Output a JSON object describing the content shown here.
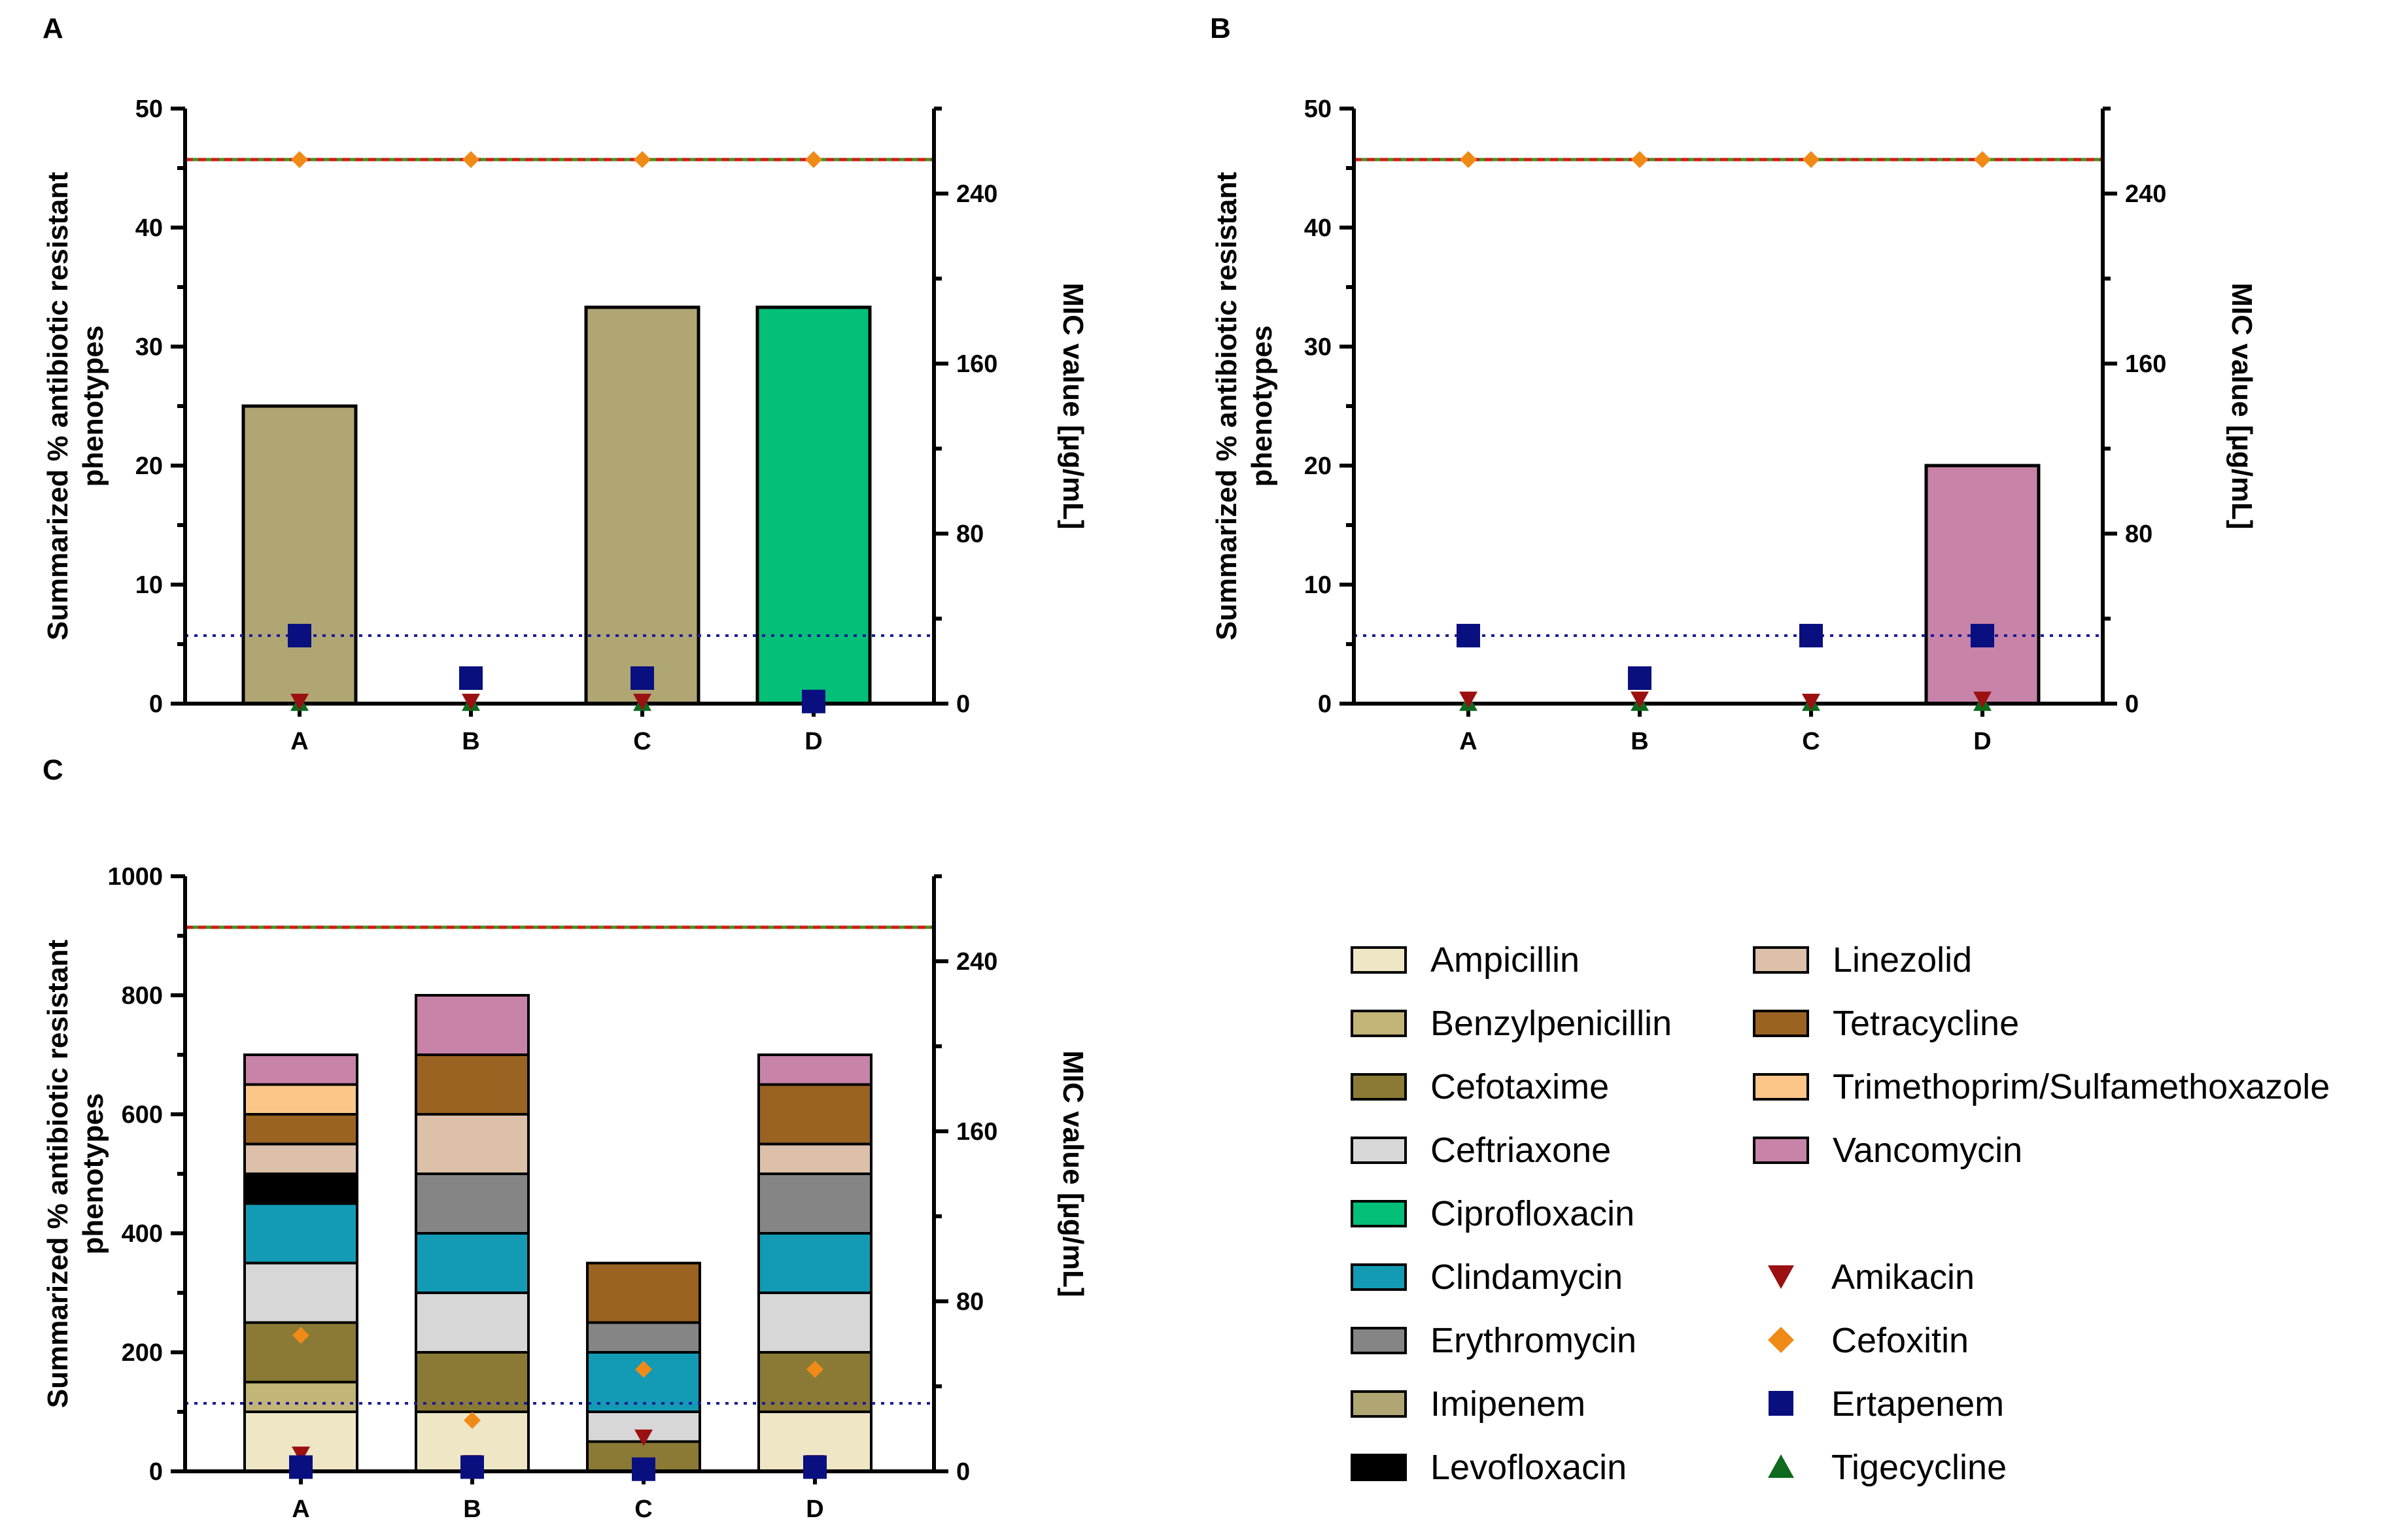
{
  "chart_data": [
    {
      "panel": "A",
      "type": "bar",
      "ylabel": "Summarized % antibiotic resistant phenotypes",
      "y2label": "MIC value [µg/mL]",
      "ylim": [
        0,
        50
      ],
      "y2lim": [
        0,
        280
      ],
      "yticks": [
        0,
        10,
        20,
        30,
        40,
        50
      ],
      "y2ticks": [
        0,
        80,
        160,
        240
      ],
      "categories": [
        "A",
        "B",
        "C",
        "D"
      ],
      "series": [
        {
          "name": "Imipenem",
          "values": [
            25,
            0,
            33.3,
            0
          ]
        },
        {
          "name": "Ciprofloxacin",
          "values": [
            0,
            0,
            0,
            33.3
          ]
        }
      ],
      "markers": [
        {
          "name": "Amikacin",
          "values": [
            1,
            1,
            1,
            1
          ]
        },
        {
          "name": "Cefoxitin",
          "values": [
            256,
            256,
            256,
            256
          ]
        },
        {
          "name": "Ertapenem",
          "values": [
            32,
            12,
            12,
            1
          ]
        },
        {
          "name": "Tigecycline",
          "values": [
            0.25,
            0.25,
            0.25,
            0.25
          ]
        }
      ],
      "reference_lines": [
        {
          "axis": "y2",
          "value": 256,
          "style": "red-green-dashed"
        },
        {
          "axis": "y2",
          "value": 32,
          "style": "blue-dotted"
        }
      ]
    },
    {
      "panel": "B",
      "type": "bar",
      "ylabel": "Summarized % antibiotic resistant phenotypes",
      "y2label": "MIC value [µg/mL]",
      "ylim": [
        0,
        50
      ],
      "y2lim": [
        0,
        280
      ],
      "yticks": [
        0,
        10,
        20,
        30,
        40,
        50
      ],
      "y2ticks": [
        0,
        80,
        160,
        240
      ],
      "categories": [
        "A",
        "B",
        "C",
        "D"
      ],
      "series": [
        {
          "name": "Vancomycin",
          "values": [
            0,
            0,
            0,
            20
          ]
        }
      ],
      "markers": [
        {
          "name": "Amikacin",
          "values": [
            2,
            2,
            1,
            2
          ]
        },
        {
          "name": "Cefoxitin",
          "values": [
            256,
            256,
            256,
            256
          ]
        },
        {
          "name": "Ertapenem",
          "values": [
            32,
            12,
            32,
            32
          ]
        },
        {
          "name": "Tigecycline",
          "values": [
            0.25,
            0.25,
            0.25,
            0.25
          ]
        }
      ],
      "reference_lines": [
        {
          "axis": "y2",
          "value": 256,
          "style": "red-green-dashed"
        },
        {
          "axis": "y2",
          "value": 32,
          "style": "blue-dotted"
        }
      ]
    },
    {
      "panel": "C",
      "type": "bar",
      "stacked": true,
      "ylabel": "Summarized % antibiotic resistant phenotypes",
      "y2label": "MIC value [µg/mL]",
      "ylim": [
        0,
        1000
      ],
      "y2lim": [
        0,
        280
      ],
      "yticks": [
        0,
        200,
        400,
        600,
        800,
        1000
      ],
      "y2ticks": [
        0,
        80,
        160,
        240
      ],
      "categories": [
        "A",
        "B",
        "C",
        "D"
      ],
      "series": [
        {
          "name": "Ampicillin",
          "values": [
            100,
            100,
            0,
            100
          ]
        },
        {
          "name": "Cefotaxime",
          "values": [
            0,
            0,
            50,
            0
          ]
        },
        {
          "name": "Ceftriaxone",
          "values": [
            0,
            0,
            50,
            0
          ]
        },
        {
          "name": "Benzylpenicillin",
          "values": [
            50,
            0,
            0,
            0
          ]
        },
        {
          "name": "Cefotaxime",
          "values": [
            100,
            100,
            0,
            100
          ]
        },
        {
          "name": "Ceftriaxone",
          "values": [
            100,
            100,
            0,
            100
          ]
        },
        {
          "name": "Clindamycin",
          "values": [
            100,
            100,
            100,
            100
          ]
        },
        {
          "name": "Levofloxacin",
          "values": [
            50,
            0,
            0,
            0
          ]
        },
        {
          "name": "Erythromycin",
          "values": [
            0,
            100,
            50,
            100
          ]
        },
        {
          "name": "Linezolid",
          "values": [
            50,
            100,
            0,
            50
          ]
        },
        {
          "name": "Tetracycline",
          "values": [
            50,
            100,
            100,
            100
          ]
        },
        {
          "name": "Trimethoprim/Sulfamethoxazole",
          "values": [
            50,
            0,
            0,
            0
          ]
        },
        {
          "name": "Vancomycin",
          "values": [
            50,
            100,
            0,
            50
          ]
        }
      ],
      "markers": [
        {
          "name": "Amikacin",
          "values": [
            8,
            4,
            16,
            4
          ]
        },
        {
          "name": "Cefoxitin",
          "values": [
            64,
            24,
            48,
            48
          ]
        },
        {
          "name": "Ertapenem",
          "values": [
            2,
            2,
            1,
            2
          ]
        },
        {
          "name": "Tigecycline",
          "values": [
            0.25,
            0.25,
            0.25,
            0.25
          ]
        }
      ],
      "reference_lines": [
        {
          "axis": "y2",
          "value": 256,
          "style": "red-green-dashed"
        },
        {
          "axis": "y2",
          "value": 32,
          "style": "blue-dotted"
        }
      ]
    }
  ],
  "colors": {
    "Ampicillin": "#efe6c6",
    "Benzylpenicillin": "#c3b478",
    "Cefotaxime": "#8a7a35",
    "Ceftriaxone": "#d7d7d7",
    "Ciprofloxacin": "#04bf78",
    "Clindamycin": "#139bb5",
    "Erythromycin": "#858585",
    "Imipenem": "#b0a674",
    "Levofloxacin": "#000000",
    "Linezolid": "#dcc0aa",
    "Tetracycline": "#9a6322",
    "Trimethoprim/Sulfamethoxazole": "#fcc689",
    "Vancomycin": "#c783a8",
    "Amikacin": "#9b1010",
    "Cefoxitin": "#f08a17",
    "Ertapenem": "#0a0f80",
    "Tigecycline": "#0e6a1e",
    "refline_upper_a": "#d21a1a",
    "refline_upper_b": "#3a9a1a",
    "refline_lower": "#1a1a9a"
  },
  "legend": {
    "bars": [
      {
        "label": "Ampicillin",
        "color_key": "Ampicillin"
      },
      {
        "label": "Benzylpenicillin",
        "color_key": "Benzylpenicillin"
      },
      {
        "label": "Cefotaxime",
        "color_key": "Cefotaxime"
      },
      {
        "label": "Ceftriaxone",
        "color_key": "Ceftriaxone"
      },
      {
        "label": "Ciprofloxacin",
        "color_key": "Ciprofloxacin"
      },
      {
        "label": "Clindamycin",
        "color_key": "Clindamycin"
      },
      {
        "label": "Erythromycin",
        "color_key": "Erythromycin"
      },
      {
        "label": "Imipenem",
        "color_key": "Imipenem"
      },
      {
        "label": "Levofloxacin",
        "color_key": "Levofloxacin"
      },
      {
        "label": "Linezolid",
        "color_key": "Linezolid"
      },
      {
        "label": "Tetracycline",
        "color_key": "Tetracycline"
      },
      {
        "label": "Trimethoprim/Sulfamethoxazole",
        "color_key": "Trimethoprim/Sulfamethoxazole"
      },
      {
        "label": "Vancomycin",
        "color_key": "Vancomycin"
      }
    ],
    "markers": [
      {
        "label": "Amikacin",
        "shape": "triangle-down",
        "color_key": "Amikacin"
      },
      {
        "label": "Cefoxitin",
        "shape": "diamond",
        "color_key": "Cefoxitin"
      },
      {
        "label": "Ertapenem",
        "shape": "square",
        "color_key": "Ertapenem"
      },
      {
        "label": "Tigecycline",
        "shape": "triangle-up",
        "color_key": "Tigecycline"
      }
    ]
  }
}
